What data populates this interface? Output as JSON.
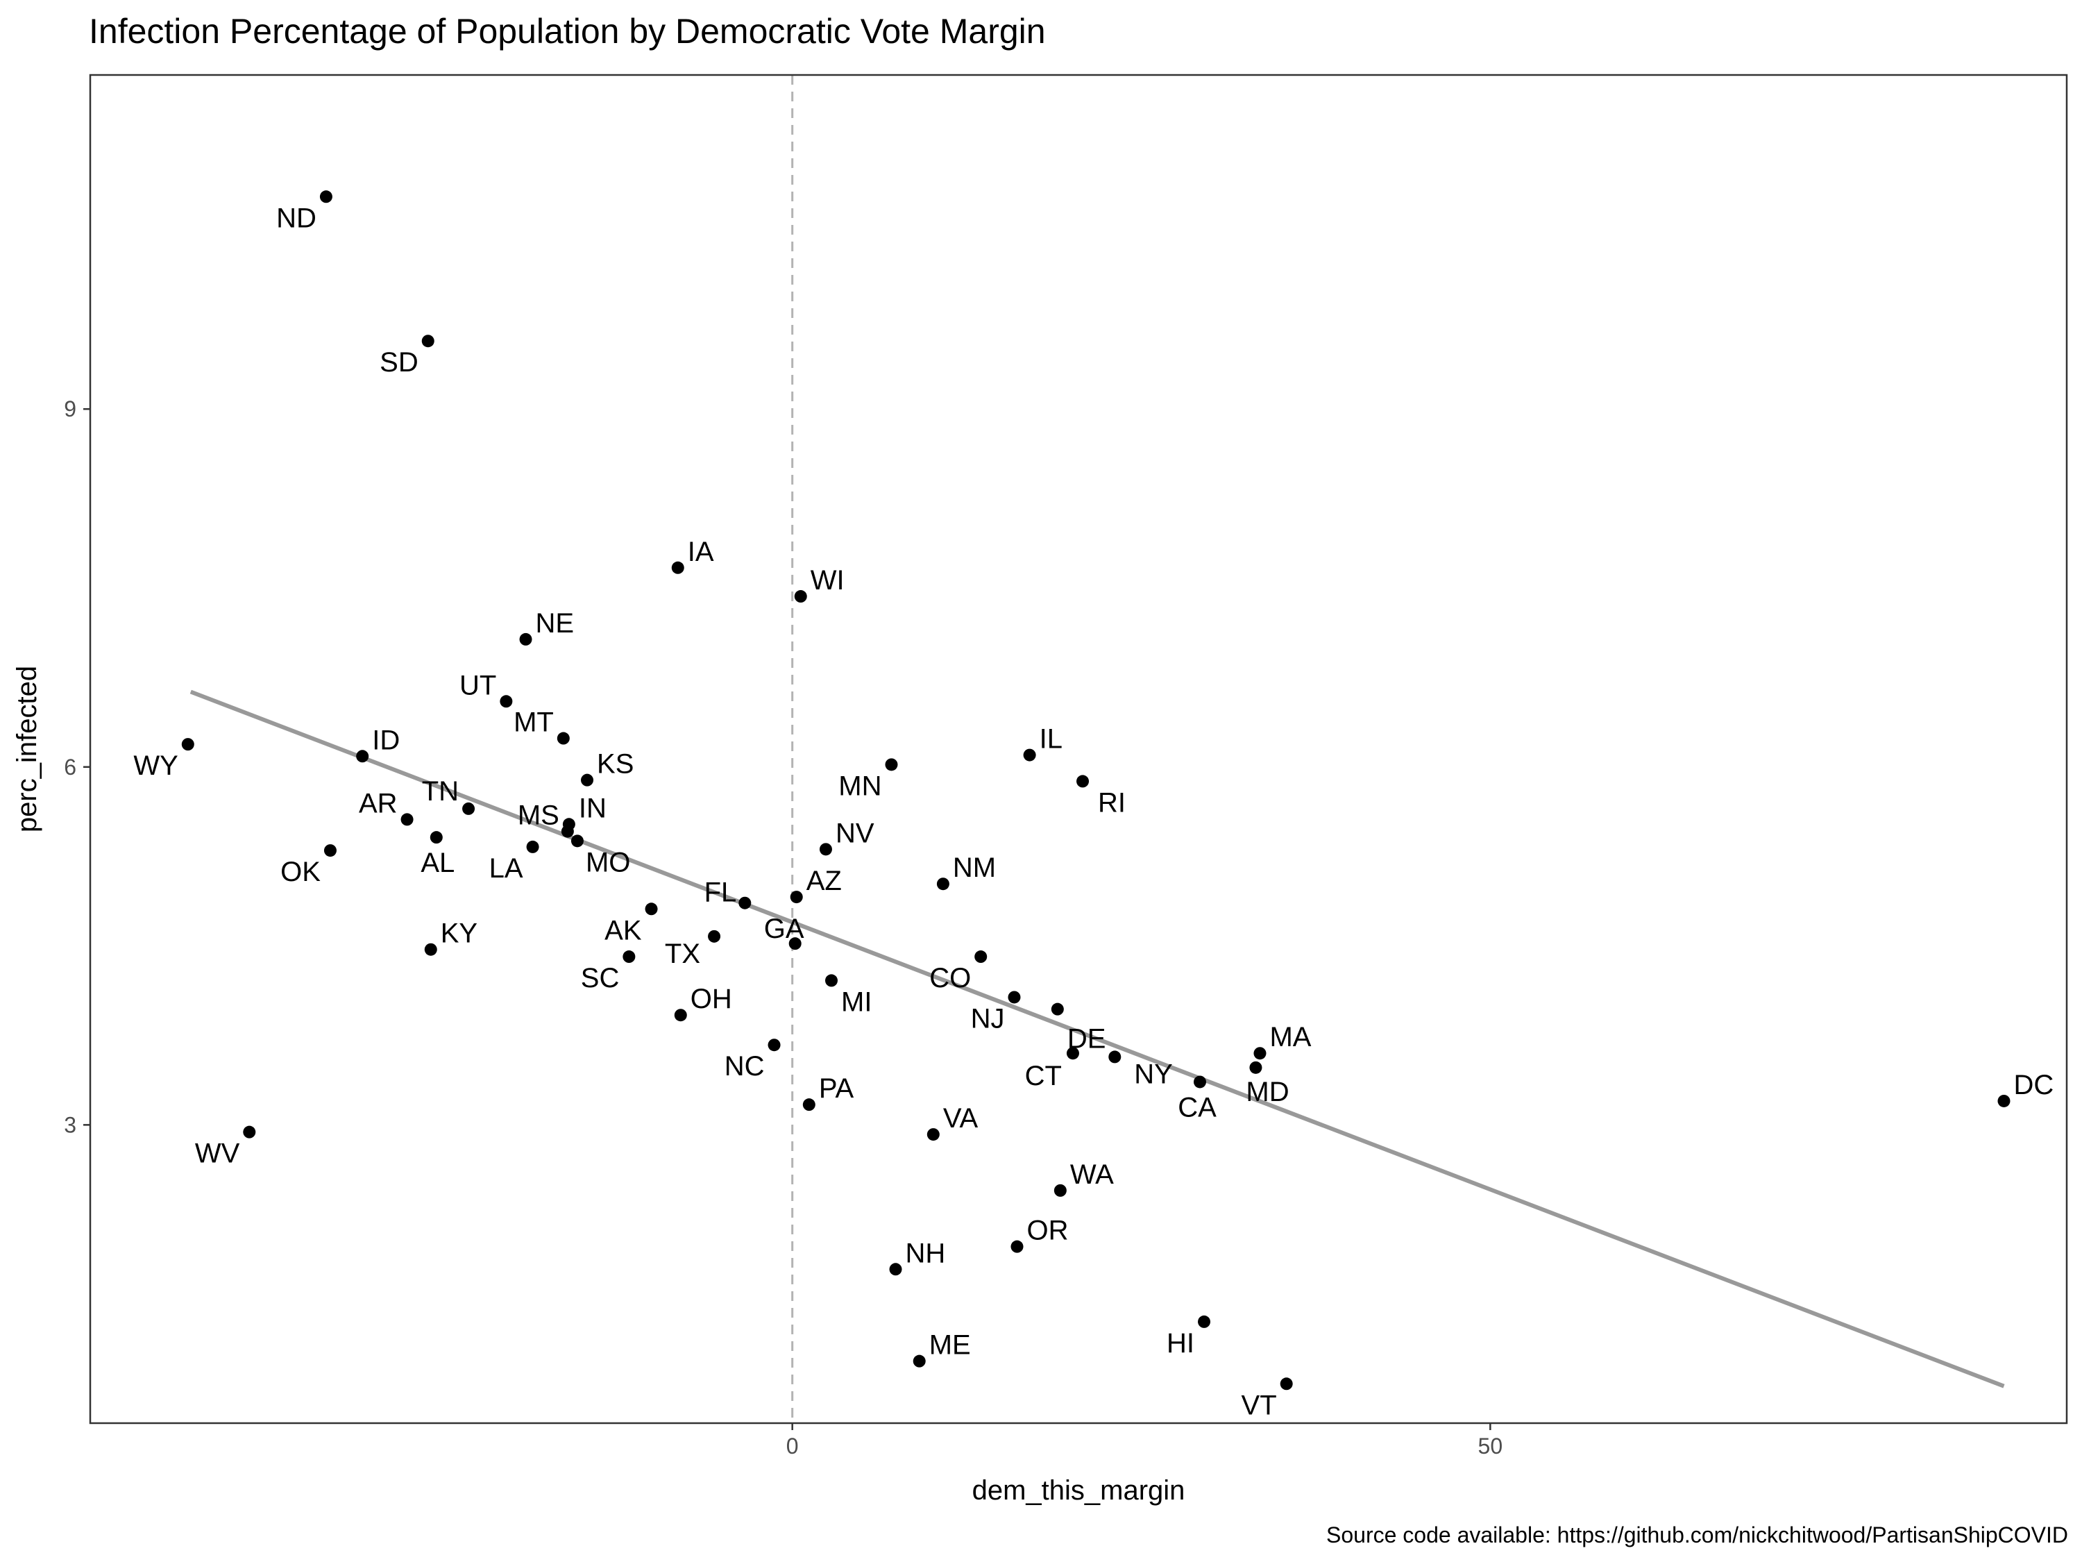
{
  "chart_data": {
    "type": "scatter",
    "title": "Infection Percentage of Population by Democratic Vote Margin",
    "xlabel": "dem_this_margin",
    "ylabel": "perc_infected",
    "caption": "Source code available: https://github.com/nickchitwood/PartisanShipCOVID",
    "xlim": [
      -50.3,
      91.3
    ],
    "ylim": [
      0.5,
      11.8
    ],
    "x_ticks": [
      0,
      50
    ],
    "y_ticks": [
      3,
      6,
      9
    ],
    "grid": false,
    "reference_line": {
      "x": 0,
      "style": "dashed"
    },
    "trend_line": {
      "x": [
        -43.1,
        86.8
      ],
      "y": [
        6.63,
        0.81
      ]
    },
    "colors": {
      "points": "#000000",
      "trend": "#999999",
      "reference": "#b3b3b3",
      "frame": "#333333"
    },
    "points": [
      {
        "label": "ND",
        "x": -33.4,
        "y": 10.78
      },
      {
        "label": "SD",
        "x": -26.1,
        "y": 9.57
      },
      {
        "label": "IA",
        "x": -8.2,
        "y": 7.67
      },
      {
        "label": "WI",
        "x": 0.6,
        "y": 7.43
      },
      {
        "label": "NE",
        "x": -19.1,
        "y": 7.07
      },
      {
        "label": "UT",
        "x": -20.5,
        "y": 6.55
      },
      {
        "label": "WY",
        "x": -43.3,
        "y": 6.19
      },
      {
        "label": "ID",
        "x": -30.8,
        "y": 6.09
      },
      {
        "label": "MT",
        "x": -16.4,
        "y": 6.24
      },
      {
        "label": "KS",
        "x": -14.7,
        "y": 5.89
      },
      {
        "label": "IL",
        "x": 17.0,
        "y": 6.1
      },
      {
        "label": "RI",
        "x": 20.8,
        "y": 5.88
      },
      {
        "label": "MN",
        "x": 7.1,
        "y": 6.02
      },
      {
        "label": "TN",
        "x": -23.2,
        "y": 5.65
      },
      {
        "label": "AR",
        "x": -27.6,
        "y": 5.56
      },
      {
        "label": "AL",
        "x": -25.5,
        "y": 5.41
      },
      {
        "label": "OK",
        "x": -33.1,
        "y": 5.3
      },
      {
        "label": "MS",
        "x": -16.1,
        "y": 5.46
      },
      {
        "label": "IN",
        "x": -16.0,
        "y": 5.52
      },
      {
        "label": "MO",
        "x": -15.4,
        "y": 5.38
      },
      {
        "label": "LA",
        "x": -18.6,
        "y": 5.33
      },
      {
        "label": "NV",
        "x": 2.4,
        "y": 5.31
      },
      {
        "label": "NM",
        "x": 10.8,
        "y": 5.02
      },
      {
        "label": "FL",
        "x": -3.4,
        "y": 4.86
      },
      {
        "label": "AZ",
        "x": 0.3,
        "y": 4.91
      },
      {
        "label": "AK",
        "x": -10.1,
        "y": 4.81
      },
      {
        "label": "GA",
        "x": 0.2,
        "y": 4.52
      },
      {
        "label": "TX",
        "x": -5.6,
        "y": 4.58
      },
      {
        "label": "KY",
        "x": -25.9,
        "y": 4.47
      },
      {
        "label": "SC",
        "x": -11.7,
        "y": 4.41
      },
      {
        "label": "CO",
        "x": 13.5,
        "y": 4.41
      },
      {
        "label": "NJ",
        "x": 15.9,
        "y": 4.07
      },
      {
        "label": "MI",
        "x": 2.8,
        "y": 4.21
      },
      {
        "label": "OH",
        "x": -8.0,
        "y": 3.92
      },
      {
        "label": "DE",
        "x": 19.0,
        "y": 3.97
      },
      {
        "label": "NC",
        "x": -1.3,
        "y": 3.67
      },
      {
        "label": "CT",
        "x": 20.1,
        "y": 3.6
      },
      {
        "label": "NY",
        "x": 23.1,
        "y": 3.57
      },
      {
        "label": "MA",
        "x": 33.5,
        "y": 3.6
      },
      {
        "label": "MD",
        "x": 33.2,
        "y": 3.48
      },
      {
        "label": "CA",
        "x": 29.2,
        "y": 3.36
      },
      {
        "label": "DC",
        "x": 86.8,
        "y": 3.2
      },
      {
        "label": "PA",
        "x": 1.2,
        "y": 3.17
      },
      {
        "label": "VA",
        "x": 10.1,
        "y": 2.92
      },
      {
        "label": "WV",
        "x": -38.9,
        "y": 2.94
      },
      {
        "label": "WA",
        "x": 19.2,
        "y": 2.45
      },
      {
        "label": "OR",
        "x": 16.1,
        "y": 1.98
      },
      {
        "label": "NH",
        "x": 7.4,
        "y": 1.79
      },
      {
        "label": "HI",
        "x": 29.5,
        "y": 1.35
      },
      {
        "label": "ME",
        "x": 9.1,
        "y": 1.02
      },
      {
        "label": "VT",
        "x": 35.4,
        "y": 0.83
      }
    ]
  }
}
